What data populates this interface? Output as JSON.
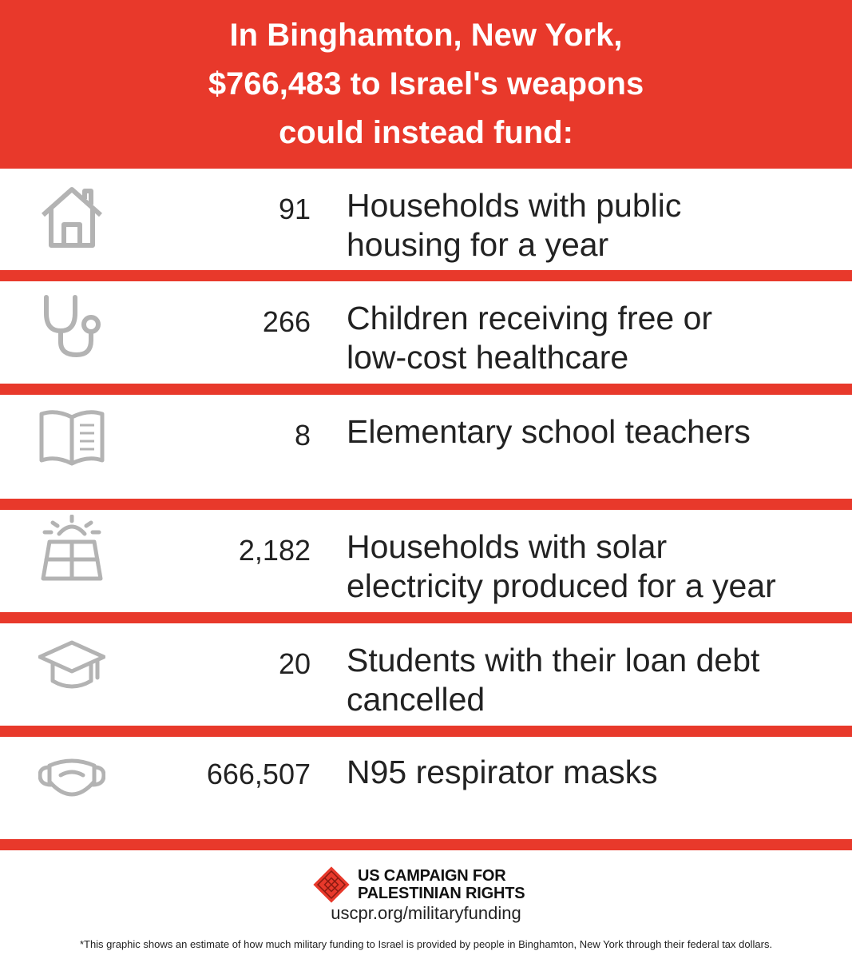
{
  "header": {
    "line1": "In Binghamton, New York,",
    "line2": "$766,483 to Israel's weapons",
    "line3": "could instead fund:"
  },
  "items": [
    {
      "icon": "house-icon",
      "number": "91",
      "line1": "Households with public",
      "line2": "housing for a year"
    },
    {
      "icon": "stethoscope-icon",
      "number": "266",
      "line1": "Children receiving free or",
      "line2": "low-cost healthcare"
    },
    {
      "icon": "book-icon",
      "number": "8",
      "line1": "Elementary school teachers",
      "line2": ""
    },
    {
      "icon": "solar-panel-icon",
      "number": "2,182",
      "line1": "Households with solar",
      "line2": "electricity produced for a year"
    },
    {
      "icon": "graduation-cap-icon",
      "number": "20",
      "line1": "Students with their loan debt",
      "line2": "cancelled"
    },
    {
      "icon": "mask-icon",
      "number": "666,507",
      "line1": "N95 respirator masks",
      "line2": ""
    }
  ],
  "footer": {
    "org_line1": "US CAMPAIGN FOR",
    "org_line2": "PALESTINIAN RIGHTS",
    "url": "uscpr.org/militaryfunding",
    "note": "*This graphic shows an estimate of how much military funding to Israel is provided by people in Binghamton, New York through their federal tax dollars."
  },
  "colors": {
    "accent": "#e8392b",
    "icon_gray": "#b3b3b3",
    "text": "#222222"
  }
}
